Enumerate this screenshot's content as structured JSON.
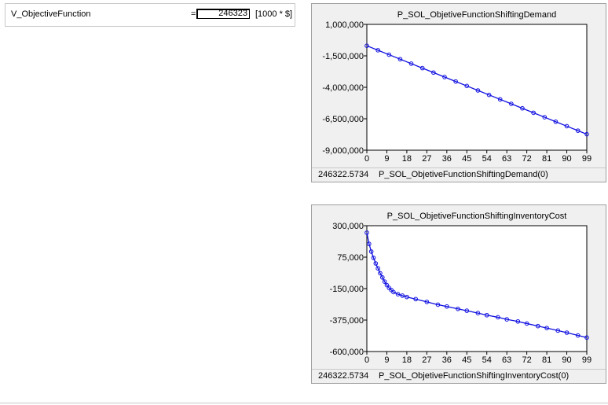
{
  "variable": {
    "name": "V_ObjectiveFunction",
    "equals": "=",
    "value": "246323",
    "unit": "[1000 * $]"
  },
  "colors": {
    "series": "#1010e0",
    "plot_bg": "#ffffff",
    "panel_bg": "#f0f0f0"
  },
  "chart_data": [
    {
      "type": "line",
      "title": "P_SOL_ObjetiveFunctionShiftingDemand",
      "x_tick_labels": [
        "0",
        "9",
        "18",
        "27",
        "36",
        "45",
        "54",
        "63",
        "72",
        "81",
        "90",
        "99"
      ],
      "y_tick_labels": [
        "1,000,000",
        "-1,500,000",
        "-4,000,000",
        "-6,500,000",
        "-9,000,000"
      ],
      "xlim": [
        0,
        99
      ],
      "ylim": [
        -9000000,
        1000000
      ],
      "marker": "circle",
      "x": [
        0,
        5,
        10,
        15,
        20,
        25,
        30,
        35,
        40,
        45,
        50,
        55,
        60,
        65,
        70,
        75,
        80,
        85,
        90,
        95,
        99
      ],
      "y": [
        -700000,
        -1055000,
        -1410000,
        -1765000,
        -2120000,
        -2475000,
        -2830000,
        -3185000,
        -3540000,
        -3895000,
        -4250000,
        -4605000,
        -4960000,
        -5315000,
        -5670000,
        -6025000,
        -6380000,
        -6735000,
        -7090000,
        -7445000,
        -7730000
      ],
      "footer_value": "246322.5734",
      "footer_label": "P_SOL_ObjetiveFunctionShiftingDemand(0)"
    },
    {
      "type": "line",
      "title": "P_SOL_ObjetiveFunctionShiftingInventoryCost",
      "x_tick_labels": [
        "0",
        "9",
        "18",
        "27",
        "36",
        "45",
        "54",
        "63",
        "72",
        "81",
        "90",
        "99"
      ],
      "y_tick_labels": [
        "300,000",
        "75,000",
        "-150,000",
        "-375,000",
        "-600,000"
      ],
      "xlim": [
        0,
        99
      ],
      "ylim": [
        -600000,
        300000
      ],
      "marker": "circle",
      "x": [
        0,
        1,
        2,
        3,
        4,
        5,
        6,
        7,
        8,
        9,
        10,
        11,
        12,
        14,
        16,
        18,
        22,
        27,
        32,
        36,
        41,
        45,
        50,
        54,
        59,
        63,
        68,
        72,
        77,
        81,
        86,
        90,
        95,
        99
      ],
      "y": [
        250000,
        170000,
        115000,
        70000,
        30000,
        -5000,
        -40000,
        -70000,
        -100000,
        -125000,
        -145000,
        -160000,
        -175000,
        -190000,
        -200000,
        -210000,
        -225000,
        -245000,
        -265000,
        -278000,
        -295000,
        -308000,
        -325000,
        -340000,
        -355000,
        -370000,
        -385000,
        -400000,
        -418000,
        -432000,
        -450000,
        -465000,
        -485000,
        -500000
      ],
      "footer_value": "246322.5734",
      "footer_label": "P_SOL_ObjetiveFunctionShiftingInventoryCost(0)"
    }
  ]
}
